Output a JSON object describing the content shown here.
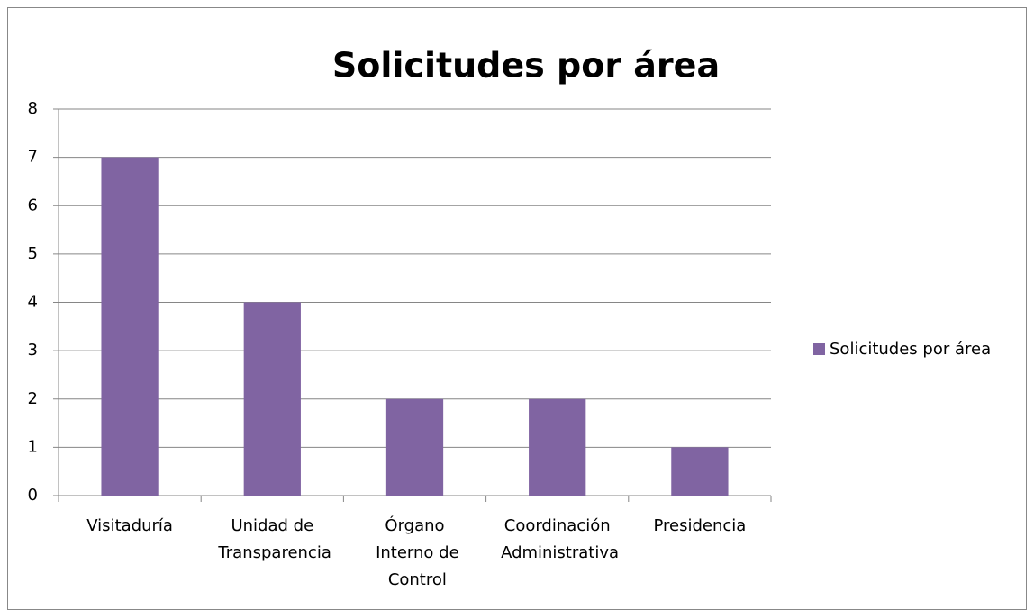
{
  "chart_data": {
    "type": "bar",
    "title": "Solicitudes por área",
    "categories": [
      "Visitaduría",
      "Unidad de Transparencia",
      "Órgano Interno de Control",
      "Coordinación Administrativa",
      "Presidencia"
    ],
    "series": [
      {
        "name": "Solicitudes por área",
        "color": "#8064a2",
        "values": [
          7,
          4,
          2,
          2,
          1
        ]
      }
    ],
    "ylim": [
      0,
      8
    ],
    "yticks": [
      0,
      1,
      2,
      3,
      4,
      5,
      6,
      7,
      8
    ],
    "grid": true,
    "legend": "right"
  }
}
